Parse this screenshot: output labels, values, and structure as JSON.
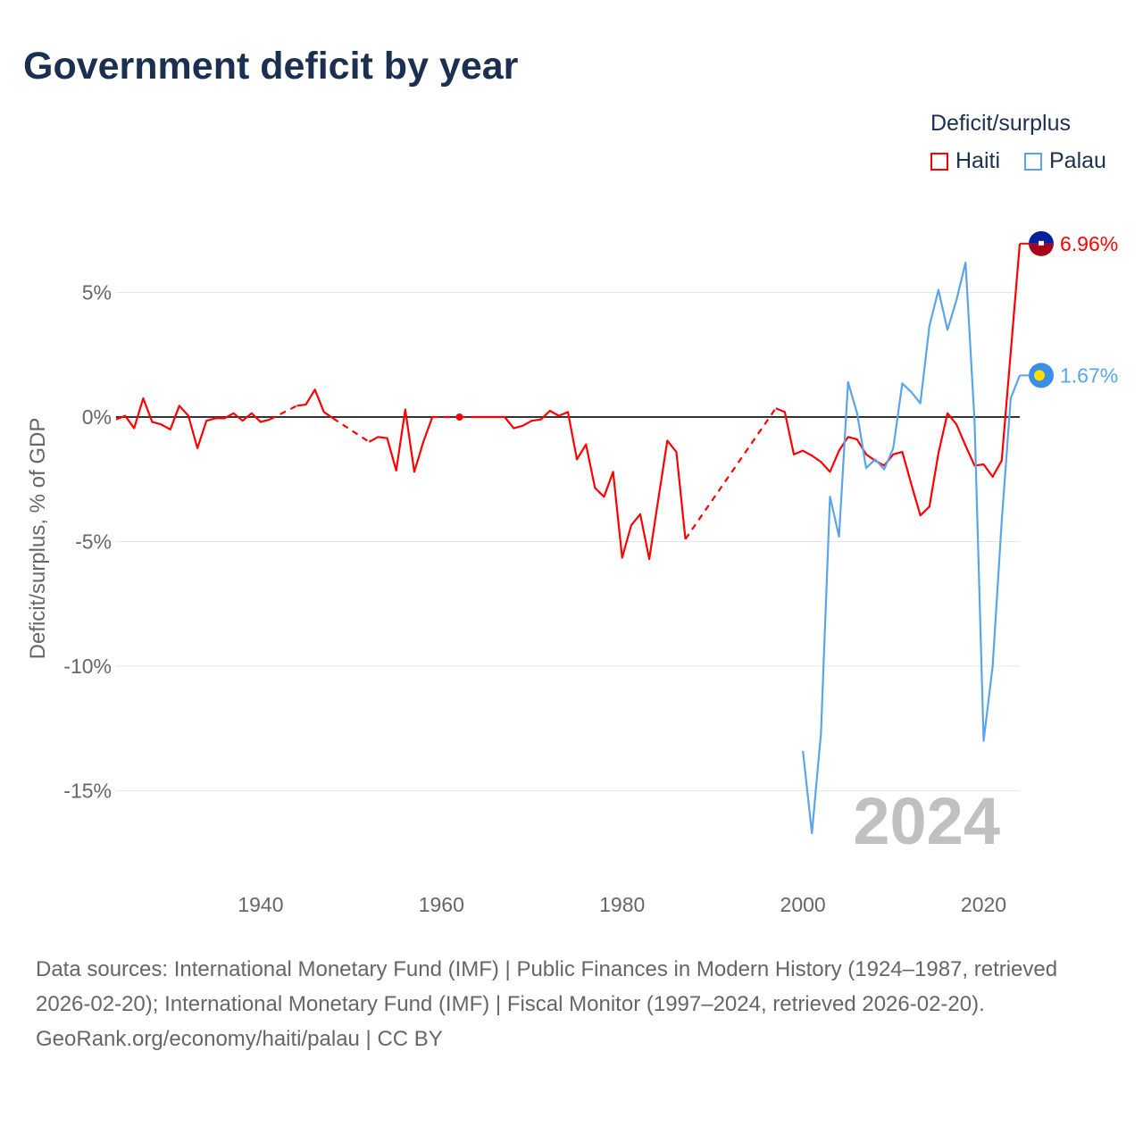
{
  "title": "Government deficit by year",
  "chart_data": {
    "type": "line",
    "title": "Government deficit by year",
    "xlabel": "",
    "ylabel": "Deficit/surplus, % of GDP",
    "xlim": [
      1924,
      2024
    ],
    "ylim": [
      -17.5,
      7.5
    ],
    "xticks": [
      1940,
      1960,
      1980,
      2000,
      2020
    ],
    "xtick_labels": [
      "1940",
      "1960",
      "1980",
      "2000",
      "2020"
    ],
    "yticks": [
      5,
      0,
      -5,
      -10,
      -15
    ],
    "ytick_labels": [
      "5%",
      "0%",
      "-5%",
      "-10%",
      "-15%"
    ],
    "legend_title": "Deficit/surplus",
    "legend_position": "top-right",
    "year_watermark": "2024",
    "series": [
      {
        "name": "Haiti",
        "color": "#ff0000",
        "end_label": "6.96%",
        "start_year": 1924,
        "values": [
          -0.1,
          0.05,
          -0.45,
          0.75,
          -0.2,
          -0.3,
          -0.5,
          0.45,
          0.05,
          -1.25,
          -0.15,
          -0.05,
          -0.05,
          0.15,
          -0.15,
          0.15,
          -0.2,
          -0.1,
          null,
          null,
          0.45,
          0.5,
          1.1,
          0.2,
          -0.05,
          null,
          null,
          null,
          -1.0,
          -0.8,
          -0.85,
          -2.15,
          0.3,
          -2.2,
          -1.0,
          0,
          null,
          null,
          0,
          null,
          0,
          0,
          0,
          0,
          -0.45,
          -0.35,
          -0.15,
          -0.1,
          0.25,
          0.05,
          0.2,
          -1.7,
          -1.1,
          -2.85,
          -3.2,
          -2.2,
          -5.65,
          -4.35,
          -3.9,
          -5.7,
          -3.3,
          -0.95,
          -1.4,
          -4.9,
          null,
          null,
          null,
          null,
          null,
          null,
          null,
          null,
          null,
          0.35,
          0.2,
          -1.5,
          -1.35,
          -1.55,
          -1.8,
          -2.2,
          -1.35,
          -0.8,
          -0.9,
          -1.5,
          -1.75,
          -1.95,
          -1.5,
          -1.4,
          -2.7,
          -3.95,
          -3.6,
          -1.45,
          0.15,
          -0.3,
          -1.15,
          -1.95,
          -1.9,
          -2.4,
          -1.75,
          2.6,
          6.96
        ]
      },
      {
        "name": "Palau",
        "color": "#5aa5ea",
        "end_label": "1.67%",
        "start_year": 2000,
        "values": [
          -13.4,
          -16.7,
          -12.7,
          -3.2,
          -4.8,
          1.4,
          0.15,
          -2.05,
          -1.7,
          -2.1,
          -1.25,
          1.35,
          1.0,
          0.55,
          3.65,
          5.1,
          3.5,
          4.7,
          6.2,
          -0.2,
          -13.0,
          -10.0,
          -4.2,
          0.75,
          1.67
        ]
      }
    ]
  },
  "source": {
    "line1": "Data sources: International Monetary Fund (IMF) | Public Finances in Modern History (1924–1987, retrieved 2026-02-20); International Monetary Fund (IMF) | Fiscal Monitor (1997–2024, retrieved 2026-02-20).",
    "line2": "GeoRank.org/economy/haiti/palau | CC BY"
  }
}
